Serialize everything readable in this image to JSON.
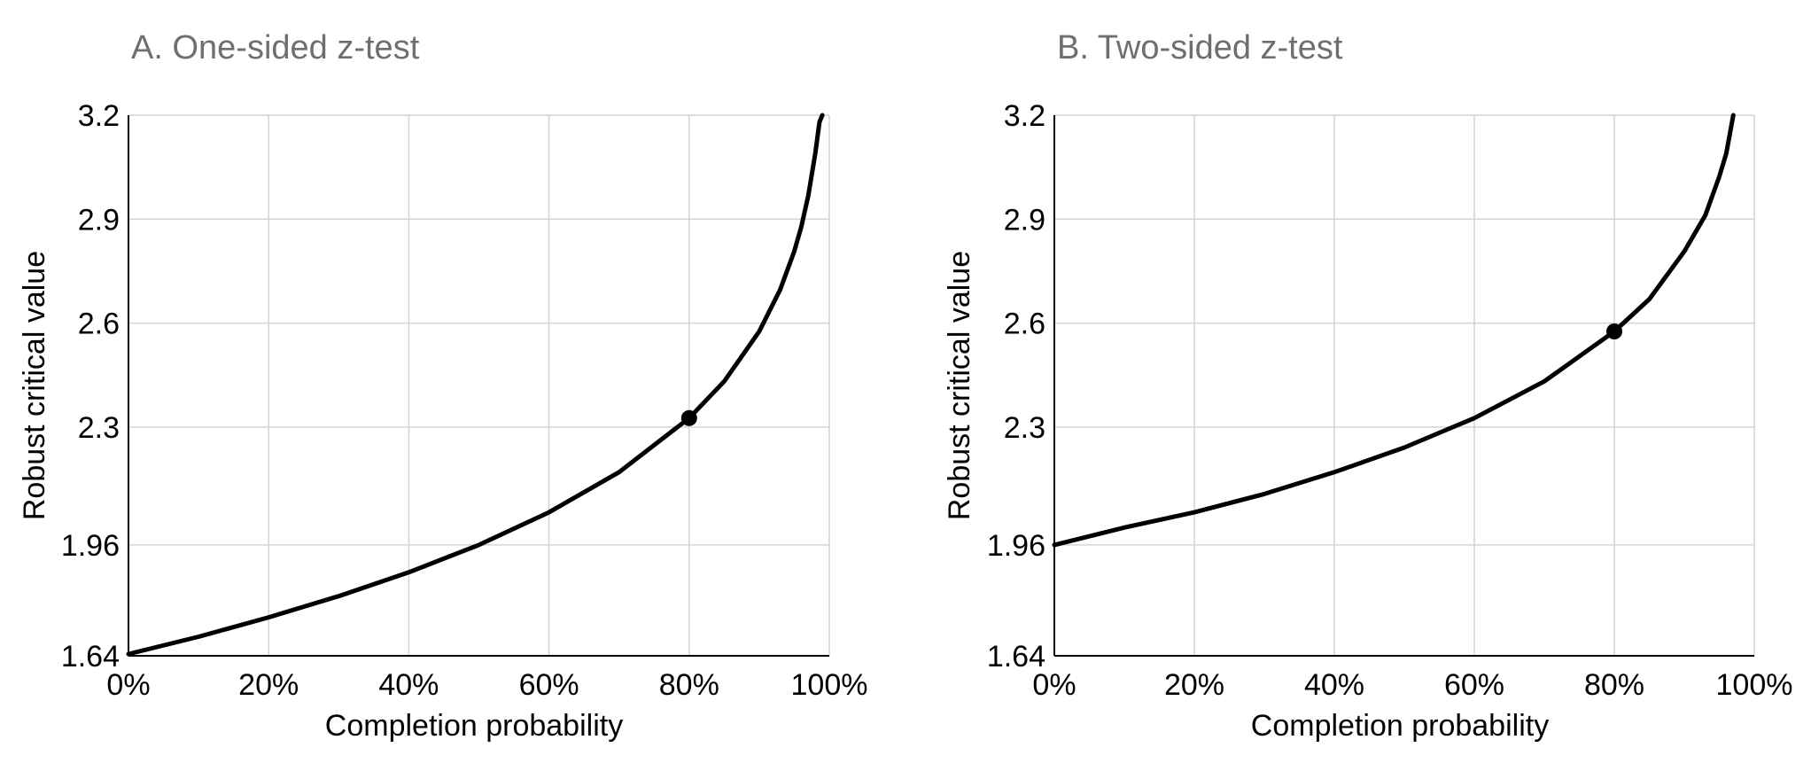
{
  "chart_data": [
    {
      "type": "line",
      "title": "A. One-sided z-test",
      "xlabel": "Completion probability",
      "ylabel": "Robust critical value",
      "xlim": [
        0,
        100
      ],
      "ylim": [
        1.64,
        3.2
      ],
      "x_ticks": [
        0,
        20,
        40,
        60,
        80,
        100
      ],
      "x_tick_labels": [
        "0%",
        "20%",
        "40%",
        "60%",
        "80%",
        "100%"
      ],
      "y_ticks": [
        1.64,
        1.96,
        2.3,
        2.6,
        2.9,
        3.2
      ],
      "y_tick_labels": [
        "1.64",
        "1.96",
        "2.3",
        "2.6",
        "2.9",
        "3.2"
      ],
      "grid": true,
      "line_color": "#000000",
      "series": [
        {
          "x": [
            0,
            10,
            20,
            30,
            40,
            50,
            60,
            70,
            80,
            85,
            90,
            93,
            95,
            96,
            97,
            98,
            98.6,
            99
          ],
          "values": [
            1.645,
            1.695,
            1.751,
            1.812,
            1.881,
            1.96,
            2.054,
            2.17,
            2.326,
            2.432,
            2.576,
            2.697,
            2.807,
            2.878,
            2.968,
            3.09,
            3.18,
            3.2
          ]
        }
      ],
      "highlight_point": {
        "x": 80,
        "y": 2.326
      }
    },
    {
      "type": "line",
      "title": "B. Two-sided z-test",
      "xlabel": "Completion probability",
      "ylabel": "Robust critical value",
      "xlim": [
        0,
        100
      ],
      "ylim": [
        1.64,
        3.2
      ],
      "x_ticks": [
        0,
        20,
        40,
        60,
        80,
        100
      ],
      "x_tick_labels": [
        "0%",
        "20%",
        "40%",
        "60%",
        "80%",
        "100%"
      ],
      "y_ticks": [
        1.64,
        1.96,
        2.3,
        2.6,
        2.9,
        3.2
      ],
      "y_tick_labels": [
        "1.64",
        "1.96",
        "2.3",
        "2.6",
        "2.9",
        "3.2"
      ],
      "grid": true,
      "line_color": "#000000",
      "series": [
        {
          "x": [
            0,
            10,
            20,
            30,
            40,
            50,
            60,
            70,
            80,
            85,
            90,
            93,
            95,
            96,
            97
          ],
          "values": [
            1.96,
            2.01,
            2.054,
            2.107,
            2.17,
            2.241,
            2.326,
            2.432,
            2.576,
            2.669,
            2.807,
            2.911,
            3.023,
            3.09,
            3.2
          ]
        }
      ],
      "highlight_point": {
        "x": 80,
        "y": 2.576
      }
    }
  ]
}
